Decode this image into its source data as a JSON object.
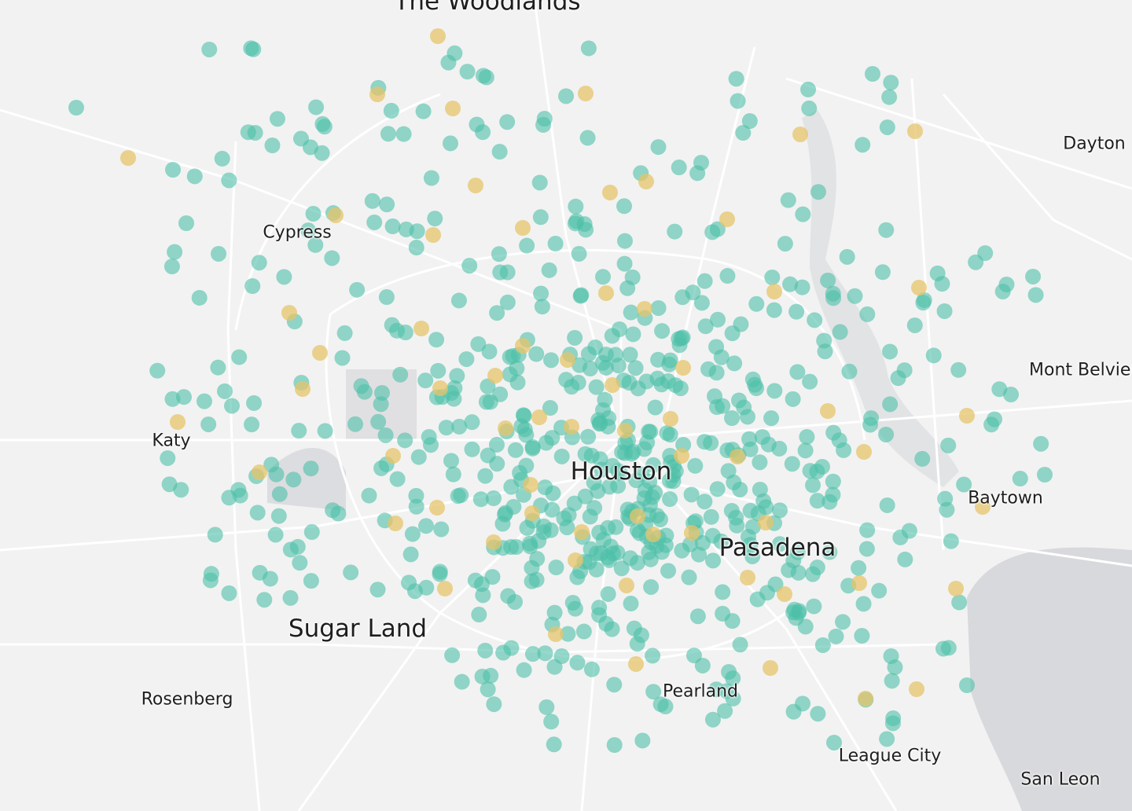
{
  "map": {
    "colors": {
      "background": "#f2f2f2",
      "road": "#ffffff",
      "urban": "#e4e4e6",
      "water": "#d8d9dc",
      "dot_primary": "#4dbfa9",
      "dot_secondary": "#e6c46a"
    },
    "places": [
      {
        "name": "The Woodlands",
        "size": "big"
      },
      {
        "name": "Cypress",
        "size": "small"
      },
      {
        "name": "Dayton",
        "size": "small"
      },
      {
        "name": "Mont Belvieu",
        "size": "small"
      },
      {
        "name": "Katy",
        "size": "small"
      },
      {
        "name": "Houston",
        "size": "big"
      },
      {
        "name": "Baytown",
        "size": "small"
      },
      {
        "name": "Pasadena",
        "size": "big"
      },
      {
        "name": "Sugar Land",
        "size": "big"
      },
      {
        "name": "Rosenberg",
        "size": "small"
      },
      {
        "name": "Pearland",
        "size": "small"
      },
      {
        "name": "League City",
        "size": "small"
      },
      {
        "name": "San Leon",
        "size": "small"
      }
    ]
  }
}
